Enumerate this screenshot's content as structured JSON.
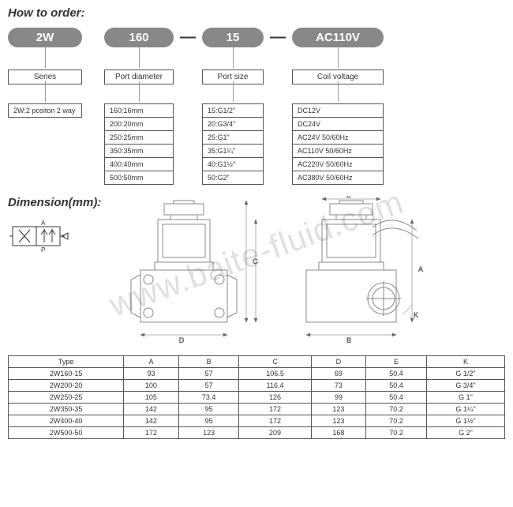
{
  "title_order": "How to order:",
  "order_parts": {
    "series": "2W",
    "port_diameter": "160",
    "port_size": "15",
    "coil_voltage": "AC110V"
  },
  "labels": {
    "series": "Series",
    "port_diameter": "Port diameter",
    "port_size": "Port size",
    "coil_voltage": "Coil voltage"
  },
  "legend_series": "2W:2 positon 2 way",
  "port_diameter_opts": [
    "160:16mm",
    "200:20mm",
    "250:25mm",
    "350:35mm",
    "400:40mm",
    "500:50mm"
  ],
  "port_size_opts": [
    "15:G1/2\"",
    "20:G3/4\"",
    "25:G1\"",
    "35:G1¼\"",
    "40:G1½\"",
    "50:G2\""
  ],
  "coil_voltage_opts": [
    "DC12V",
    "DC24V",
    "AC24V    50/60Hz",
    "AC110V   50/60Hz",
    "AC220V   50/60Hz",
    "AC380V   50/60Hz"
  ],
  "title_dim": "Dimension(mm):",
  "dim_headers": [
    "Type",
    "A",
    "B",
    "C",
    "D",
    "E",
    "K"
  ],
  "dim_rows": [
    [
      "2W160-15",
      "93",
      "57",
      "106.5",
      "69",
      "50.4",
      "G 1/2\""
    ],
    [
      "2W200-20",
      "100",
      "57",
      "116.4",
      "73",
      "50.4",
      "G 3/4\""
    ],
    [
      "2W250-25",
      "105",
      "73.4",
      "126",
      "99",
      "50.4",
      "G 1\""
    ],
    [
      "2W350-35",
      "142",
      "95",
      "172",
      "123",
      "70.2",
      "G 1¼\""
    ],
    [
      "2W400-40",
      "142",
      "95",
      "172",
      "123",
      "70.2",
      "G 1½\""
    ],
    [
      "2W500-50",
      "172",
      "123",
      "209",
      "168",
      "70.2",
      "G 2\""
    ]
  ],
  "watermark": "www.baite-fluid.com",
  "colors": {
    "pill_bg": "#888888",
    "border": "#555555",
    "text": "#333333",
    "line": "#666666"
  }
}
